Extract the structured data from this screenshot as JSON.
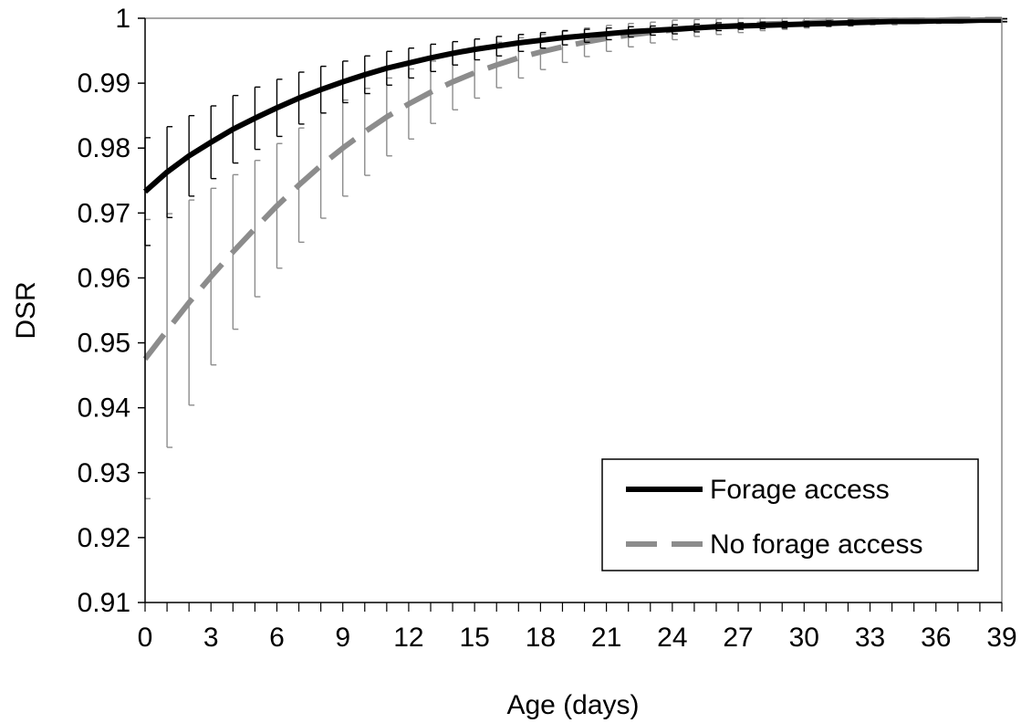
{
  "chart_data": {
    "type": "line",
    "xlabel": "Age (days)",
    "ylabel": "DSR",
    "xlim": [
      0,
      39
    ],
    "ylim": [
      0.91,
      1
    ],
    "x_ticks": [
      0,
      3,
      6,
      9,
      12,
      15,
      18,
      21,
      24,
      27,
      30,
      33,
      36,
      39
    ],
    "y_ticks": [
      0.91,
      0.92,
      0.93,
      0.94,
      0.95,
      0.96,
      0.97,
      0.98,
      0.99,
      1
    ],
    "x_tick_labels": [
      "0",
      "3",
      "6",
      "9",
      "12",
      "15",
      "18",
      "21",
      "24",
      "27",
      "30",
      "33",
      "36",
      "39"
    ],
    "y_tick_labels": [
      "0.91",
      "0.92",
      "0.93",
      "0.94",
      "0.95",
      "0.96",
      "0.97",
      "0.98",
      "0.99",
      "1"
    ],
    "grid": false,
    "legend_position": "bottom-right",
    "x": [
      0,
      1,
      2,
      3,
      4,
      5,
      6,
      7,
      8,
      9,
      10,
      11,
      12,
      13,
      14,
      15,
      16,
      17,
      18,
      19,
      20,
      21,
      22,
      23,
      24,
      25,
      26,
      27,
      28,
      29,
      30,
      31,
      32,
      33,
      34,
      35,
      36,
      37,
      38,
      39
    ],
    "series": [
      {
        "name": "Forage access",
        "color": "#000000",
        "line_style": "solid",
        "values": [
          0.9733,
          0.9763,
          0.9788,
          0.9809,
          0.9829,
          0.9846,
          0.9862,
          0.9877,
          0.989,
          0.9902,
          0.9913,
          0.9923,
          0.9931,
          0.9939,
          0.9946,
          0.9952,
          0.9957,
          0.9962,
          0.9966,
          0.997,
          0.9973,
          0.9976,
          0.9979,
          0.9981,
          0.9983,
          0.9985,
          0.9987,
          0.9988,
          0.9989,
          0.999,
          0.9991,
          0.9992,
          0.9993,
          0.9994,
          0.9995,
          0.9995,
          0.9996,
          0.9996,
          0.9997,
          0.9997
        ],
        "error": [
          0.0083,
          0.007,
          0.0062,
          0.0056,
          0.0052,
          0.0048,
          0.0044,
          0.004,
          0.0036,
          0.0032,
          0.0029,
          0.0026,
          0.0023,
          0.0021,
          0.0018,
          0.0016,
          0.0015,
          0.0013,
          0.0012,
          0.0011,
          0.001,
          0.0009,
          0.0008,
          0.0007,
          0.0007,
          0.0006,
          0.0006,
          0.0005,
          0.0005,
          0.0005,
          0.0004,
          0.0004,
          0.0004,
          0.0003,
          0.0003,
          0.0003,
          0.0003,
          0.0003,
          0.0002,
          0.0002
        ]
      },
      {
        "name": "No forage access",
        "color": "#8c8c8c",
        "line_style": "dashed",
        "values": [
          0.9475,
          0.9519,
          0.9562,
          0.9602,
          0.964,
          0.9676,
          0.9711,
          0.9743,
          0.9773,
          0.98,
          0.9825,
          0.9848,
          0.9868,
          0.9886,
          0.9902,
          0.9916,
          0.9928,
          0.9939,
          0.9948,
          0.9956,
          0.9963,
          0.9969,
          0.9974,
          0.9978,
          0.9982,
          0.9985,
          0.9987,
          0.9989,
          0.9991,
          0.9992,
          0.9993,
          0.9994,
          0.9995,
          0.9996,
          0.9996,
          0.9997,
          0.9997,
          0.9998,
          0.9998,
          0.9998
        ],
        "error": [
          0.0215,
          0.018,
          0.0158,
          0.0136,
          0.0119,
          0.0105,
          0.0096,
          0.0088,
          0.0081,
          0.0074,
          0.0067,
          0.006,
          0.0054,
          0.0048,
          0.0043,
          0.0039,
          0.0035,
          0.0031,
          0.0027,
          0.0024,
          0.0022,
          0.002,
          0.0018,
          0.0016,
          0.0015,
          0.0013,
          0.0012,
          0.0011,
          0.001,
          0.0009,
          0.0008,
          0.0007,
          0.0007,
          0.0006,
          0.0006,
          0.0005,
          0.0005,
          0.0004,
          0.0004,
          0.0004
        ]
      }
    ]
  }
}
